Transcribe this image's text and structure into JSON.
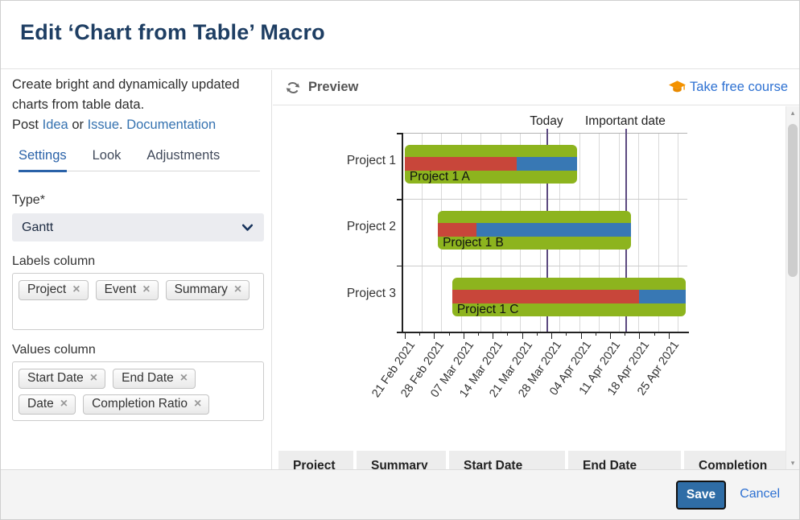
{
  "dialog": {
    "title": "Edit ‘Chart from Table’ Macro"
  },
  "sidebar": {
    "description": "Create bright and dynamically updated charts from table data.",
    "post": {
      "prefix": "Post ",
      "idea": "Idea",
      "or": " or ",
      "issue": "Issue",
      "period": ". ",
      "documentation": "Documentation"
    },
    "tabs": [
      {
        "label": "Settings",
        "active": true
      },
      {
        "label": "Look",
        "active": false
      },
      {
        "label": "Adjustments",
        "active": false
      }
    ],
    "type_field": {
      "label": "Type*",
      "value": "Gantt"
    },
    "labels_column": {
      "label": "Labels column",
      "tags": [
        "Project",
        "Event",
        "Summary"
      ]
    },
    "values_column": {
      "label": "Values column",
      "tags": [
        "Start Date",
        "End Date",
        "Date",
        "Completion Ratio"
      ]
    }
  },
  "preview": {
    "title": "Preview",
    "course_link": "Take free course",
    "table_headers": [
      "Project",
      "Summary",
      "Start Date",
      "End Date",
      "Completion"
    ]
  },
  "chart_data": {
    "type": "gantt",
    "x_tick_labels": [
      "21 Feb 2021",
      "28 Feb 2021",
      "07 Mar 2021",
      "14 Mar 2021",
      "21 Mar 2021",
      "28 Mar 2021",
      "04 Apr 2021",
      "11 Apr 2021",
      "18 Apr 2021",
      "25 Apr 2021"
    ],
    "x_tick_positions_pct": [
      1.1,
      11.4,
      21.6,
      31.9,
      42.2,
      52.4,
      62.7,
      72.9,
      83.2,
      93.4
    ],
    "rows": [
      {
        "label": "Project 1",
        "bar_label": "Project 1 A",
        "start_pct": 1.1,
        "end_pct": 61.4,
        "done_pct": 65,
        "start_date_est": "21 Feb 2021",
        "end_date_est": "02 Apr 2021"
      },
      {
        "label": "Project 2",
        "bar_label": "Project 1 B",
        "start_pct": 12.7,
        "end_pct": 80.3,
        "done_pct": 20,
        "start_date_est": "01 Mar 2021",
        "end_date_est": "18 Apr 2021"
      },
      {
        "label": "Project 3",
        "bar_label": "Project 1 C",
        "start_pct": 17.7,
        "end_pct": 99.4,
        "done_pct": 80,
        "start_date_est": "05 Mar 2021",
        "end_date_est": "29 Apr 2021"
      }
    ],
    "markers": [
      {
        "label": "Today",
        "pct": 50.7,
        "date_est": "27 Mar 2021"
      },
      {
        "label": "Important date",
        "pct": 78.3,
        "date_est": "16 Apr 2021"
      }
    ],
    "colors": {
      "bar_green": "#8db41e",
      "done_red": "#c8463a",
      "remaining_blue": "#3878b4",
      "marker_purple": "#5c4a80",
      "grid": "#d9d9d9",
      "axis": "#222222"
    },
    "legend": "none",
    "grid_on": true
  },
  "footer": {
    "save_label": "Save",
    "cancel_label": "Cancel"
  },
  "icons": {
    "close": "×",
    "scroll_up": "▴",
    "scroll_down": "▾"
  }
}
